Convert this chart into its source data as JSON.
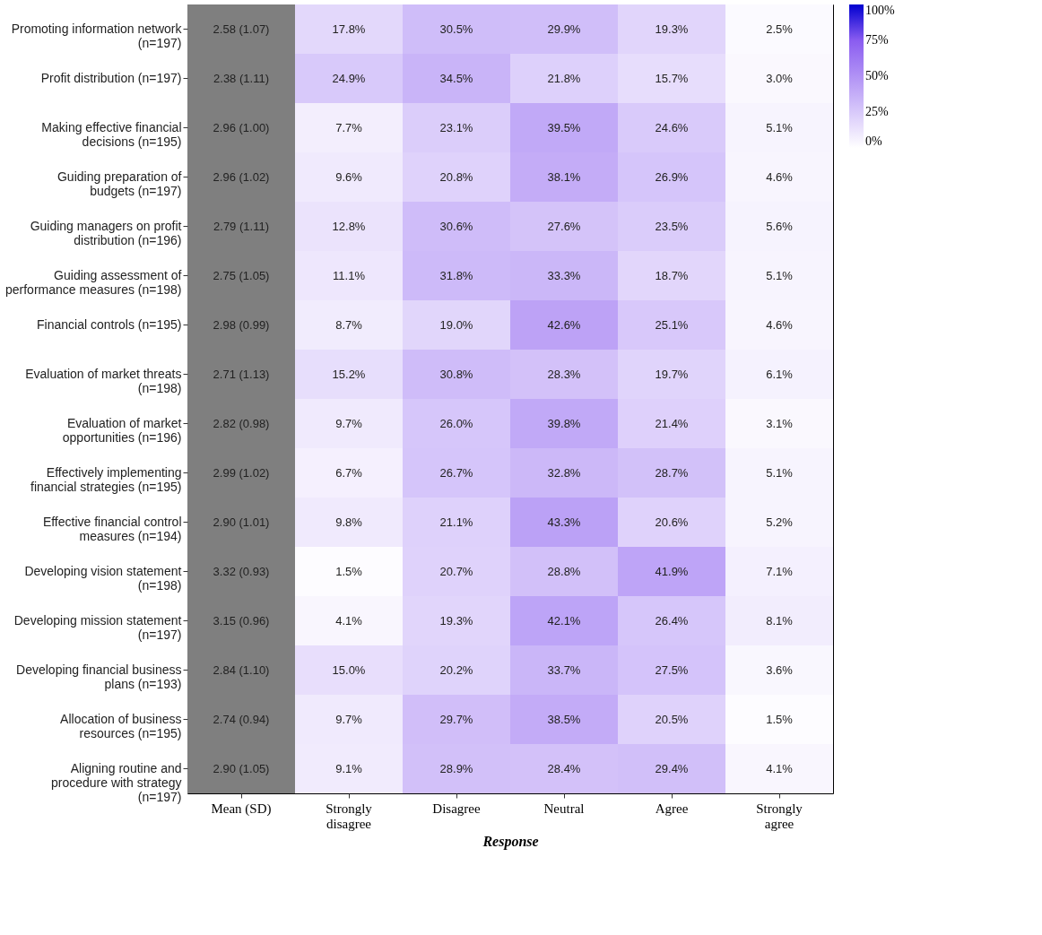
{
  "chart_data": {
    "type": "heatmap",
    "xlabel": "Response",
    "categories": [
      "Mean (SD)",
      "Strongly\ndisagree",
      "Disagree",
      "Neutral",
      "Agree",
      "Strongly\nagree"
    ],
    "y_categories": [
      "Promoting information network\n(n=197)",
      "Profit distribution (n=197)",
      "Making effective financial\ndecisions (n=195)",
      "Guiding preparation of\nbudgets (n=197)",
      "Guiding managers on profit\ndistribution (n=196)",
      "Guiding assessment of\nperformance measures (n=198)",
      "Financial controls (n=195)",
      "Evaluation of market threats\n(n=198)",
      "Evaluation of market\nopportunities (n=196)",
      "Effectively implementing\nfinancial strategies (n=195)",
      "Effective financial control\nmeasures (n=194)",
      "Developing vision statement\n(n=198)",
      "Developing mission statement\n(n=197)",
      "Developing financial business\nplans (n=193)",
      "Allocation of business\nresources (n=195)",
      "Aligning routine and\nprocedure with strategy\n(n=197)"
    ],
    "cells": [
      [
        null,
        17.8,
        30.5,
        29.9,
        19.3,
        2.5
      ],
      [
        null,
        24.9,
        34.5,
        21.8,
        15.7,
        3.0
      ],
      [
        null,
        7.7,
        23.1,
        39.5,
        24.6,
        5.1
      ],
      [
        null,
        9.6,
        20.8,
        38.1,
        26.9,
        4.6
      ],
      [
        null,
        12.8,
        30.6,
        27.6,
        23.5,
        5.6
      ],
      [
        null,
        11.1,
        31.8,
        33.3,
        18.7,
        5.1
      ],
      [
        null,
        8.7,
        19.0,
        42.6,
        25.1,
        4.6
      ],
      [
        null,
        15.2,
        30.8,
        28.3,
        19.7,
        6.1
      ],
      [
        null,
        9.7,
        26.0,
        39.8,
        21.4,
        3.1
      ],
      [
        null,
        6.7,
        26.7,
        32.8,
        28.7,
        5.1
      ],
      [
        null,
        9.8,
        21.1,
        43.3,
        20.6,
        5.2
      ],
      [
        null,
        1.5,
        20.7,
        28.8,
        41.9,
        7.1
      ],
      [
        null,
        4.1,
        19.3,
        42.1,
        26.4,
        8.1
      ],
      [
        null,
        15.0,
        20.2,
        33.7,
        27.5,
        3.6
      ],
      [
        null,
        9.7,
        29.7,
        38.5,
        20.5,
        1.5
      ],
      [
        null,
        9.1,
        28.9,
        28.4,
        29.4,
        4.1
      ]
    ],
    "cell_labels": [
      [
        "2.58 (1.07)",
        "17.8%",
        "30.5%",
        "29.9%",
        "19.3%",
        "2.5%"
      ],
      [
        "2.38 (1.11)",
        "24.9%",
        "34.5%",
        "21.8%",
        "15.7%",
        "3.0%"
      ],
      [
        "2.96 (1.00)",
        "7.7%",
        "23.1%",
        "39.5%",
        "24.6%",
        "5.1%"
      ],
      [
        "2.96 (1.02)",
        "9.6%",
        "20.8%",
        "38.1%",
        "26.9%",
        "4.6%"
      ],
      [
        "2.79 (1.11)",
        "12.8%",
        "30.6%",
        "27.6%",
        "23.5%",
        "5.6%"
      ],
      [
        "2.75 (1.05)",
        "11.1%",
        "31.8%",
        "33.3%",
        "18.7%",
        "5.1%"
      ],
      [
        "2.98 (0.99)",
        "8.7%",
        "19.0%",
        "42.6%",
        "25.1%",
        "4.6%"
      ],
      [
        "2.71 (1.13)",
        "15.2%",
        "30.8%",
        "28.3%",
        "19.7%",
        "6.1%"
      ],
      [
        "2.82 (0.98)",
        "9.7%",
        "26.0%",
        "39.8%",
        "21.4%",
        "3.1%"
      ],
      [
        "2.99 (1.02)",
        "6.7%",
        "26.7%",
        "32.8%",
        "28.7%",
        "5.1%"
      ],
      [
        "2.90 (1.01)",
        "9.8%",
        "21.1%",
        "43.3%",
        "20.6%",
        "5.2%"
      ],
      [
        "3.32 (0.93)",
        "1.5%",
        "20.7%",
        "28.8%",
        "41.9%",
        "7.1%"
      ],
      [
        "3.15 (0.96)",
        "4.1%",
        "19.3%",
        "42.1%",
        "26.4%",
        "8.1%"
      ],
      [
        "2.84 (1.10)",
        "15.0%",
        "20.2%",
        "33.7%",
        "27.5%",
        "3.6%"
      ],
      [
        "2.74 (0.94)",
        "9.7%",
        "29.7%",
        "38.5%",
        "20.5%",
        "1.5%"
      ],
      [
        "2.90 (1.05)",
        "9.1%",
        "28.9%",
        "28.4%",
        "29.4%",
        "4.1%"
      ]
    ],
    "clim": [
      0,
      100
    ],
    "cticks": [
      {
        "value": 0,
        "label": "0%"
      },
      {
        "value": 25,
        "label": "25%"
      },
      {
        "value": 50,
        "label": "50%"
      },
      {
        "value": 75,
        "label": "75%"
      },
      {
        "value": 100,
        "label": "100%"
      }
    ]
  }
}
